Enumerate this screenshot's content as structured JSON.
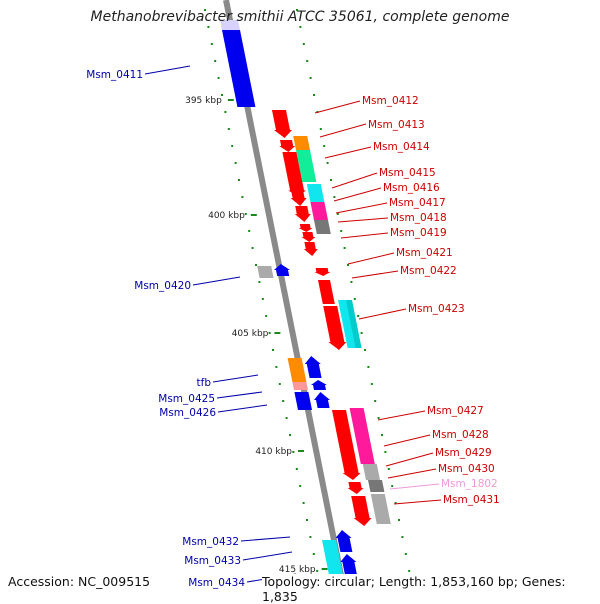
{
  "title": "Methanobrevibacter smithii ATCC 35061, complete genome",
  "footer": {
    "accession": "Accession: NC_009515",
    "topology": "Topology: circular; Length: 1,853,160 bp; Genes: 1,835"
  },
  "colors": {
    "backbone": "#8a8a8a",
    "tick": "#1a8a1a",
    "forward_label": "#cc0000",
    "reverse_label": "#0000aa",
    "rna_label": "#ee99dd",
    "red": "#ff0000",
    "blue": "#0000ee",
    "orange": "#ff8c00",
    "green": "#11ee99",
    "cyan": "#11e6ee",
    "magenta": "#ff1a9c",
    "gray": "#aaaaaa",
    "dark_gray": "#777777",
    "pink": "#ff9999",
    "lavender": "#d7d2ff"
  },
  "scale_labels": [
    "395 kbp",
    "400 kbp",
    "405 kbp",
    "410 kbp",
    "415 kbp"
  ],
  "gene_labels": [
    {
      "text": "Msm_0411",
      "strand": "reverse"
    },
    {
      "text": "Msm_0412",
      "strand": "forward"
    },
    {
      "text": "Msm_0413",
      "strand": "forward"
    },
    {
      "text": "Msm_0414",
      "strand": "forward"
    },
    {
      "text": "Msm_0415",
      "strand": "forward"
    },
    {
      "text": "Msm_0416",
      "strand": "forward"
    },
    {
      "text": "Msm_0417",
      "strand": "forward"
    },
    {
      "text": "Msm_0418",
      "strand": "forward"
    },
    {
      "text": "Msm_0419",
      "strand": "forward"
    },
    {
      "text": "Msm_0420",
      "strand": "reverse"
    },
    {
      "text": "Msm_0421",
      "strand": "forward"
    },
    {
      "text": "Msm_0422",
      "strand": "forward"
    },
    {
      "text": "Msm_0423",
      "strand": "forward"
    },
    {
      "text": "tfb",
      "strand": "reverse"
    },
    {
      "text": "Msm_0425",
      "strand": "reverse"
    },
    {
      "text": "Msm_0426",
      "strand": "reverse"
    },
    {
      "text": "Msm_0427",
      "strand": "forward"
    },
    {
      "text": "Msm_0428",
      "strand": "forward"
    },
    {
      "text": "Msm_0429",
      "strand": "forward"
    },
    {
      "text": "Msm_0430",
      "strand": "forward"
    },
    {
      "text": "Msm_1802",
      "strand": "rna"
    },
    {
      "text": "Msm_0431",
      "strand": "forward"
    },
    {
      "text": "Msm_0432",
      "strand": "reverse"
    },
    {
      "text": "Msm_0433",
      "strand": "reverse"
    },
    {
      "text": "Msm_0434",
      "strand": "reverse"
    }
  ]
}
